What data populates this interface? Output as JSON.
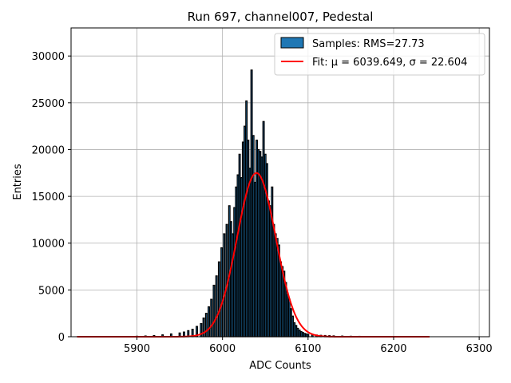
{
  "chart_data": {
    "type": "bar",
    "title": "Run 697, channel007, Pedestal",
    "xlabel": "ADC Counts",
    "ylabel": "Entries",
    "xlim": [
      5823,
      6312
    ],
    "ylim": [
      0,
      33000
    ],
    "xticks": [
      5900,
      6000,
      6100,
      6200,
      6300
    ],
    "yticks": [
      0,
      5000,
      10000,
      15000,
      20000,
      25000,
      30000
    ],
    "grid": true,
    "legend_position": "top-right",
    "colors": {
      "hist_face": "#1f77b4",
      "hist_edge": "#000000",
      "fit_line": "#ff0000",
      "grid": "#b0b0b0"
    },
    "legend": {
      "samples_label": "Samples: RMS=27.73",
      "fit_label": "Fit: μ = 6039.649, σ = 22.604"
    },
    "fit": {
      "mu": 6039.649,
      "sigma": 22.604,
      "amplitude": 17500,
      "x_range": [
        5830,
        6242
      ]
    },
    "histogram": {
      "x": [
        5900,
        5910,
        5920,
        5930,
        5940,
        5950,
        5955,
        5960,
        5965,
        5970,
        5975,
        5978,
        5981,
        5984,
        5987,
        5990,
        5993,
        5996,
        5999,
        6002,
        6005,
        6008,
        6010,
        6012,
        6014,
        6016,
        6018,
        6020,
        6022,
        6024,
        6026,
        6028,
        6030,
        6032,
        6034,
        6036,
        6038,
        6040,
        6042,
        6044,
        6046,
        6048,
        6050,
        6052,
        6054,
        6056,
        6058,
        6060,
        6062,
        6064,
        6066,
        6068,
        6070,
        6072,
        6074,
        6076,
        6078,
        6080,
        6082,
        6084,
        6086,
        6088,
        6090,
        6092,
        6094,
        6096,
        6098,
        6100,
        6105,
        6110,
        6115,
        6120,
        6125,
        6130,
        6140,
        6150,
        6160
      ],
      "values": [
        50,
        80,
        120,
        200,
        300,
        400,
        500,
        650,
        800,
        1100,
        1400,
        2000,
        2500,
        3200,
        4000,
        5500,
        6500,
        8000,
        9500,
        11000,
        12000,
        14000,
        12300,
        11000,
        13800,
        16000,
        17300,
        19500,
        17000,
        20800,
        22500,
        25200,
        21000,
        18000,
        28500,
        21500,
        16500,
        21000,
        20000,
        19800,
        19200,
        23000,
        19500,
        18500,
        14500,
        14000,
        16000,
        12000,
        11000,
        10500,
        9800,
        8000,
        7500,
        7000,
        5800,
        4500,
        4000,
        3000,
        2200,
        1500,
        1200,
        900,
        700,
        550,
        450,
        350,
        300,
        250,
        200,
        180,
        150,
        130,
        110,
        90,
        70,
        50,
        40
      ]
    }
  }
}
